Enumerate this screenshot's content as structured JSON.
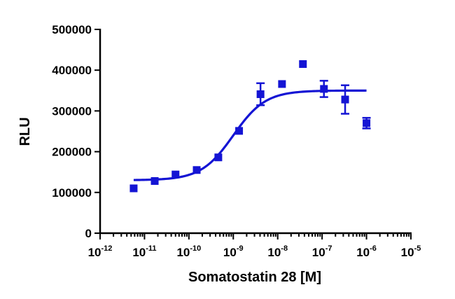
{
  "chart_data": {
    "type": "scatter",
    "title": "",
    "xlabel": "Somatostatin 28 [M]",
    "ylabel": "RLU",
    "x_scale": "log10",
    "xlim": [
      1e-12,
      1e-05
    ],
    "ylim": [
      0,
      500000
    ],
    "x_ticks": [
      {
        "base": "10",
        "exp": "-12",
        "value": 1e-12
      },
      {
        "base": "10",
        "exp": "-11",
        "value": 1e-11
      },
      {
        "base": "10",
        "exp": "-10",
        "value": 1e-10
      },
      {
        "base": "10",
        "exp": "-9",
        "value": 1e-09
      },
      {
        "base": "10",
        "exp": "-8",
        "value": 1e-08
      },
      {
        "base": "10",
        "exp": "-7",
        "value": 1e-07
      },
      {
        "base": "10",
        "exp": "-6",
        "value": 1e-06
      },
      {
        "base": "10",
        "exp": "-5",
        "value": 1e-05
      }
    ],
    "y_ticks": [
      {
        "label": "0",
        "value": 0
      },
      {
        "label": "100000",
        "value": 100000
      },
      {
        "label": "200000",
        "value": 200000
      },
      {
        "label": "300000",
        "value": 300000
      },
      {
        "label": "400000",
        "value": 400000
      },
      {
        "label": "500000",
        "value": 500000
      }
    ],
    "grid": false,
    "color": "#1414d4",
    "points": [
      {
        "x": 5.7e-12,
        "y": 110000
      },
      {
        "x": 1.7e-11,
        "y": 128000
      },
      {
        "x": 5e-11,
        "y": 144000
      },
      {
        "x": 1.5e-10,
        "y": 155000
      },
      {
        "x": 4.6e-10,
        "y": 186000
      },
      {
        "x": 1.35e-09,
        "y": 251000
      },
      {
        "x": 4.1e-09,
        "y": 341000,
        "err": 27000
      },
      {
        "x": 1.25e-08,
        "y": 366000
      },
      {
        "x": 3.7e-08,
        "y": 415000
      },
      {
        "x": 1.1e-07,
        "y": 354000,
        "err": 20000
      },
      {
        "x": 3.3e-07,
        "y": 328000,
        "err": 35000
      },
      {
        "x": 1e-06,
        "y": 270000,
        "err": 13000
      }
    ],
    "fit_curve": {
      "model": "sigmoidal dose-response",
      "bottom": 130000,
      "top": 350000,
      "logEC50": -9.0,
      "hill_slope": 1.2,
      "x_range": [
        5.7e-12,
        1e-06
      ]
    }
  }
}
